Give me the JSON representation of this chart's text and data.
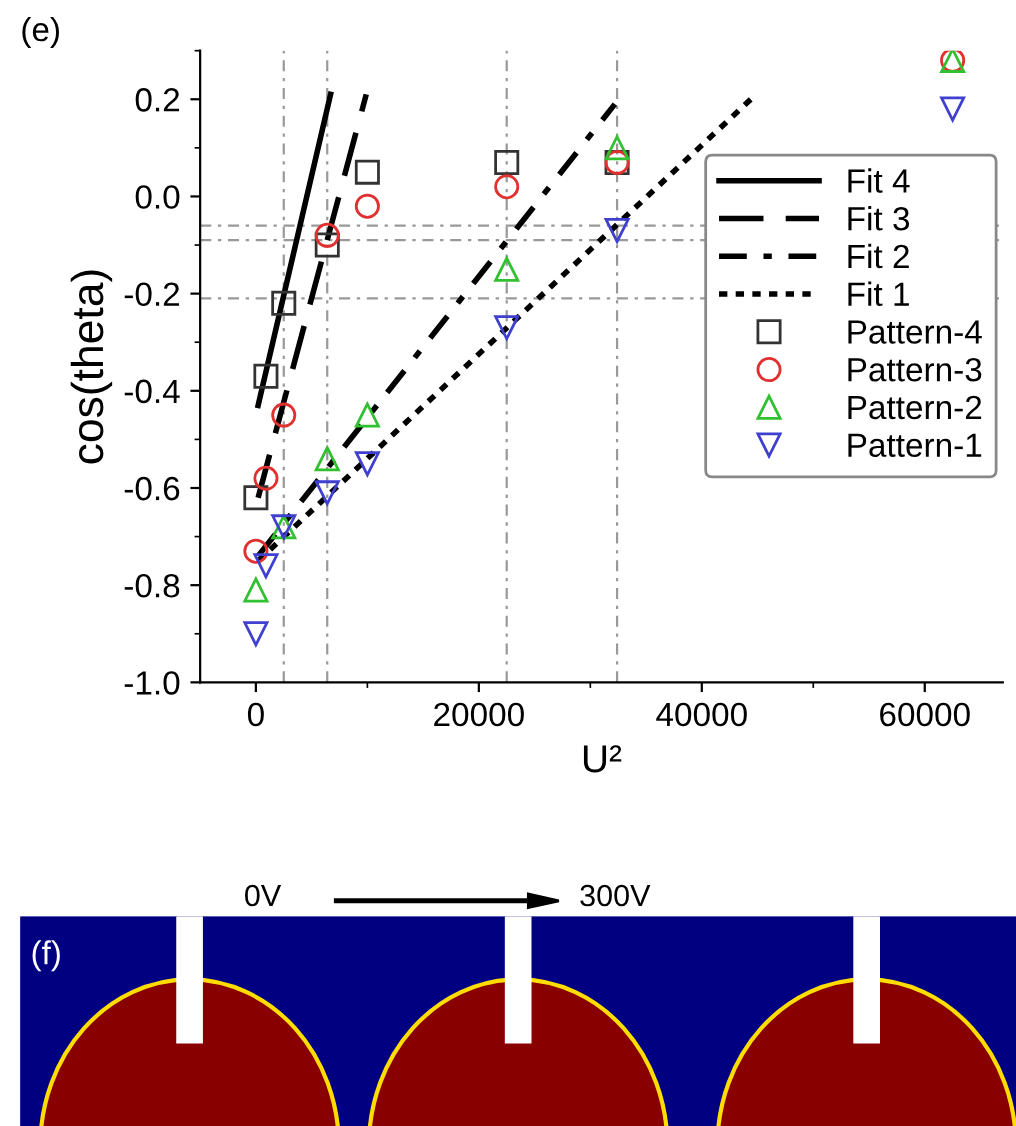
{
  "chart_data": {
    "type": "scatter",
    "xlabel": "U²",
    "ylabel": "cos(theta)",
    "xlim": [
      -5000,
      67000
    ],
    "ylim": [
      -1.0,
      0.3
    ],
    "xticks": [
      0,
      20000,
      40000,
      60000
    ],
    "yticks": [
      {
        "value": -1.0,
        "label": "-1.0"
      },
      {
        "value": -0.8,
        "label": "-0.8"
      },
      {
        "value": -0.6,
        "label": "-0.6"
      },
      {
        "value": -0.4,
        "label": "-0.4"
      },
      {
        "value": -0.2,
        "label": "-0.2"
      },
      {
        "value": 0.0,
        "label": "0.0"
      },
      {
        "value": 0.2,
        "label": "0.2"
      }
    ],
    "grid": false,
    "legend": "right",
    "x": [
      0,
      900,
      2500,
      6400,
      10000,
      22500,
      32400,
      62500
    ],
    "series": [
      {
        "name": "Fit 4",
        "type": "line",
        "line_style": "solid",
        "marker": "none",
        "color": "#000000",
        "x": [
          200,
          6700
        ],
        "values": [
          -0.43,
          0.21
        ]
      },
      {
        "name": "Fit 3",
        "type": "line",
        "line_style": "dashed",
        "marker": "none",
        "color": "#000000",
        "x": [
          200,
          9900
        ],
        "values": [
          -0.62,
          0.21
        ]
      },
      {
        "name": "Fit 2",
        "type": "line",
        "line_style": "dashdot",
        "marker": "none",
        "color": "#000000",
        "x": [
          200,
          32200
        ],
        "values": [
          -0.74,
          0.19
        ]
      },
      {
        "name": "Fit 1",
        "type": "line",
        "line_style": "dotted",
        "marker": "none",
        "color": "#000000",
        "x": [
          200,
          44400
        ],
        "values": [
          -0.75,
          0.2
        ]
      },
      {
        "name": "Pattern-4",
        "marker": "square",
        "color": "#333333",
        "values": [
          -0.62,
          -0.37,
          -0.22,
          -0.1,
          0.05,
          0.07,
          0.07,
          null
        ]
      },
      {
        "name": "Pattern-3",
        "marker": "circle",
        "color": "#e03030",
        "values": [
          -0.73,
          -0.58,
          -0.45,
          -0.08,
          -0.02,
          0.02,
          0.07,
          0.28
        ]
      },
      {
        "name": "Pattern-2",
        "marker": "triangle",
        "color": "#30c030",
        "values": [
          -0.81,
          null,
          -0.68,
          -0.54,
          -0.45,
          -0.15,
          0.1,
          0.28
        ]
      },
      {
        "name": "Pattern-1",
        "marker": "triangle_down",
        "color": "#4040d0",
        "values": [
          -0.9,
          -0.76,
          -0.68,
          -0.61,
          -0.55,
          -0.27,
          -0.07,
          0.18
        ]
      }
    ],
    "ref_lines": [
      {
        "axis": "y",
        "value": -0.21,
        "color": "#999999",
        "line_style": "dashdot"
      },
      {
        "axis": "y",
        "value": -0.09,
        "color": "#999999",
        "line_style": "dashdot"
      },
      {
        "axis": "y",
        "value": -0.06,
        "color": "#999999",
        "line_style": "dashdot"
      },
      {
        "axis": "x",
        "value": 2500,
        "color": "#999999",
        "line_style": "dashdot"
      },
      {
        "axis": "x",
        "value": 6400,
        "color": "#999999",
        "line_style": "dashdot"
      },
      {
        "axis": "x",
        "value": 22500,
        "color": "#999999",
        "line_style": "dashdot"
      },
      {
        "axis": "x",
        "value": 32400,
        "color": "#999999",
        "line_style": "dashdot"
      }
    ],
    "annotations": [
      "(e)",
      "(f)",
      "0V",
      "300V"
    ]
  }
}
